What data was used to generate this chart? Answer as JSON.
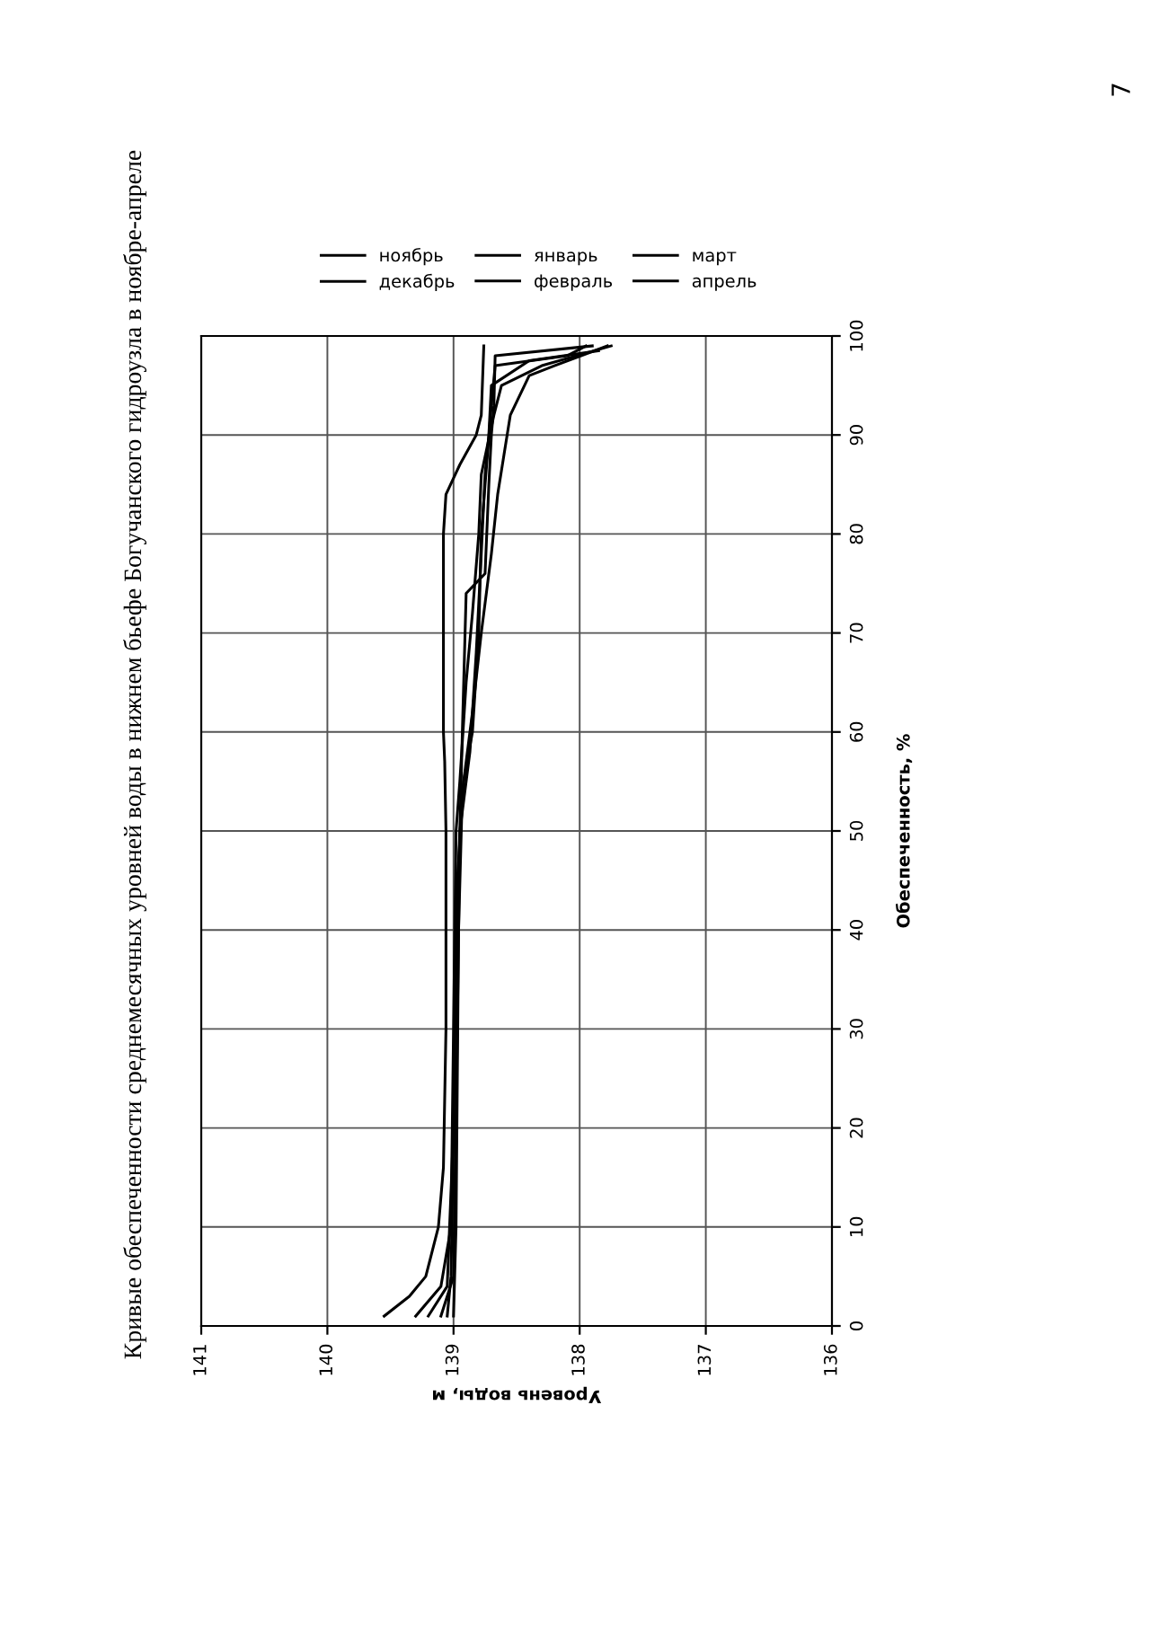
{
  "chart_data": {
    "type": "line",
    "title": "Кривые обеспеченности среднемесячных уровней воды в нижнем бьефе Богучанского гидроузла в ноябре-апреле",
    "xlabel": "Уровень воды, м",
    "ylabel": "Обеспеченность, %",
    "xlim": [
      141,
      136
    ],
    "xticks": [
      141,
      140,
      139,
      138,
      137,
      136
    ],
    "ylim": [
      0,
      100
    ],
    "yticks": [
      0,
      10,
      20,
      30,
      40,
      50,
      60,
      70,
      80,
      90,
      100
    ],
    "grid": true,
    "legend": "top",
    "marker": "none",
    "line_style": "solid",
    "annotations": [
      "7"
    ],
    "series": [
      {
        "name": "ноябрь",
        "color": "#000000",
        "x": [
          139.55,
          139.35,
          139.22,
          139.12,
          139.08,
          139.06,
          139.06,
          139.07,
          139.08,
          139.08,
          139.06,
          138.95,
          138.82,
          138.78,
          138.76
        ],
        "values": [
          1,
          3,
          5,
          10,
          16,
          30,
          50,
          57,
          60,
          80,
          84,
          87,
          90,
          92,
          99
        ]
      },
      {
        "name": "декабрь",
        "color": "#000000",
        "x": [
          139.3,
          139.1,
          139.02,
          139.0,
          138.98,
          138.95,
          138.9,
          138.85,
          138.8,
          138.78,
          138.68,
          138.62,
          138.3,
          137.75
        ],
        "values": [
          1,
          4,
          10,
          30,
          50,
          55,
          65,
          72,
          80,
          86,
          92,
          95,
          97,
          99
        ]
      },
      {
        "name": "январь",
        "color": "#000000",
        "x": [
          139.05,
          139.02,
          139.0,
          138.98,
          138.95,
          138.93,
          138.9,
          138.75,
          138.72,
          138.7,
          138.68,
          138.67,
          137.9
        ],
        "values": [
          1,
          5,
          20,
          40,
          50,
          60,
          74,
          76,
          85,
          90,
          93,
          98,
          99
        ]
      },
      {
        "name": "февраль",
        "color": "#000000",
        "x": [
          139.2,
          139.05,
          139.0,
          138.97,
          138.92,
          138.85,
          138.8,
          138.78,
          138.75,
          138.7,
          138.67,
          138.1,
          137.95
        ],
        "values": [
          1,
          4,
          20,
          45,
          55,
          60,
          70,
          80,
          85,
          93,
          97,
          98,
          99
        ]
      },
      {
        "name": "март",
        "color": "#000000",
        "x": [
          139.1,
          139.0,
          138.97,
          138.95,
          138.87,
          138.82,
          138.78,
          138.75,
          138.72,
          138.7,
          138.4,
          137.85
        ],
        "values": [
          1,
          5,
          30,
          50,
          58,
          68,
          78,
          86,
          90,
          95,
          97.5,
          98.5
        ]
      },
      {
        "name": "апрель",
        "color": "#000000",
        "x": [
          139.0,
          138.98,
          138.96,
          138.93,
          138.85,
          138.78,
          138.7,
          138.65,
          138.6,
          138.55,
          138.4,
          138.2,
          137.78
        ],
        "values": [
          1,
          10,
          40,
          54,
          62,
          70,
          78,
          84,
          88,
          92,
          96,
          97,
          99
        ]
      }
    ]
  }
}
